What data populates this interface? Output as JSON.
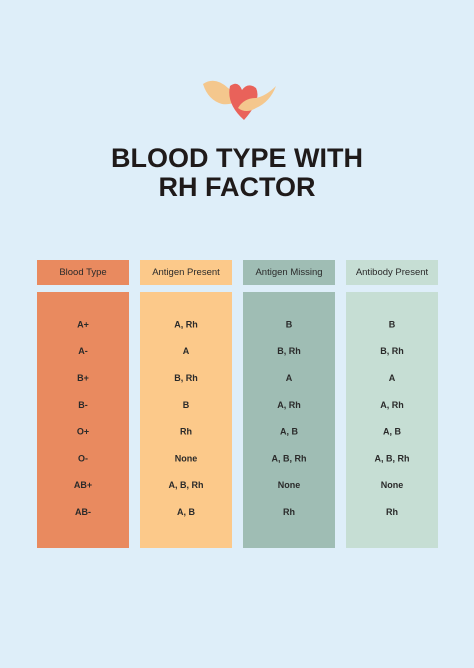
{
  "title": [
    "BLOOD TYPE WITH",
    "RH FACTOR"
  ],
  "table": {
    "headers": [
      "Blood Type",
      "Antigen Present",
      "Antigen Missing",
      "Antibody Present"
    ],
    "rows": [
      [
        "A+",
        "A, Rh",
        "B",
        "B"
      ],
      [
        "A-",
        "A",
        "B, Rh",
        "B, Rh"
      ],
      [
        "B+",
        "B, Rh",
        "A",
        "A"
      ],
      [
        "B-",
        "B",
        "A, Rh",
        "A, Rh"
      ],
      [
        "O+",
        "Rh",
        "A, B",
        "A, B"
      ],
      [
        "O-",
        "None",
        "A, B, Rh",
        "A, B, Rh"
      ],
      [
        "AB+",
        "A, B, Rh",
        "None",
        "None"
      ],
      [
        "AB-",
        "A, B",
        "Rh",
        "Rh"
      ]
    ]
  }
}
